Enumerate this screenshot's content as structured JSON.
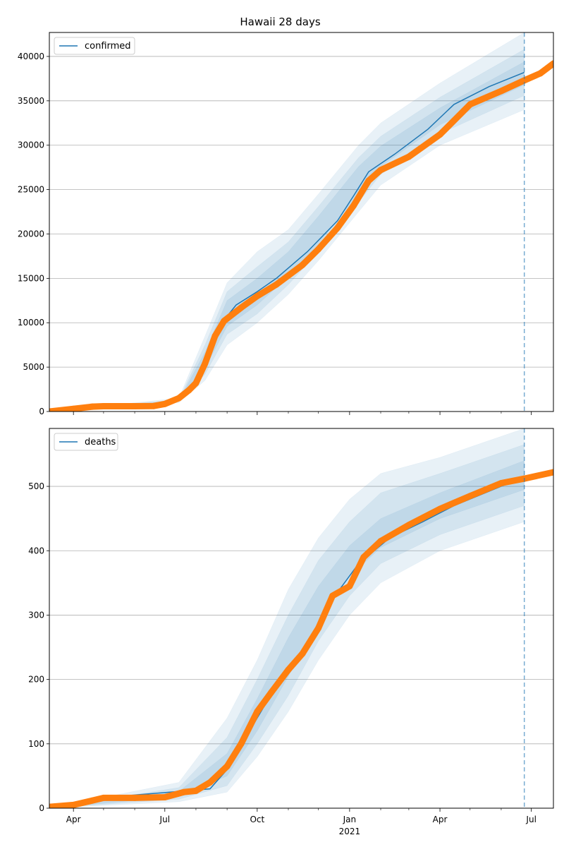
{
  "chart_data": [
    {
      "type": "line",
      "title": "Hawaii 28 days",
      "legend": [
        "confirmed"
      ],
      "legend_position": "top-left",
      "grid": "horizontal",
      "x_range": [
        "2020-03-08",
        "2021-07-23"
      ],
      "ylim": [
        0,
        42700
      ],
      "y_ticks": [
        0,
        5000,
        10000,
        15000,
        20000,
        25000,
        30000,
        35000,
        40000
      ],
      "forecast_marker": "2021-06-24",
      "model_line": {
        "name": "confirmed",
        "x": [
          "2020-03-08",
          "2020-04-20",
          "2020-07-01",
          "2020-07-20",
          "2020-08-01",
          "2020-08-10",
          "2020-08-20",
          "2020-08-29",
          "2020-09-10",
          "2020-10-01",
          "2020-10-20",
          "2020-11-20",
          "2020-12-20",
          "2021-01-05",
          "2021-01-20",
          "2021-02-15",
          "2021-03-20",
          "2021-04-15",
          "2021-05-20",
          "2021-06-24"
        ],
        "y": [
          0,
          500,
          900,
          1600,
          3000,
          5500,
          8800,
          10300,
          12000,
          13500,
          15000,
          18000,
          21500,
          24300,
          27000,
          29000,
          31800,
          34600,
          36600,
          38200
        ]
      },
      "bands": [
        {
          "x": [
            "2020-03-08",
            "2020-07-15",
            "2020-08-10",
            "2020-09-01",
            "2020-10-01",
            "2020-11-01",
            "2020-12-01",
            "2021-01-10",
            "2021-02-01",
            "2021-04-01",
            "2021-06-24"
          ],
          "upper": [
            0,
            1500,
            8500,
            14500,
            18000,
            20500,
            24500,
            30000,
            32500,
            37000,
            42700
          ],
          "lower": [
            0,
            1000,
            3500,
            7500,
            10000,
            13200,
            17000,
            22500,
            25500,
            30000,
            34000
          ]
        },
        {
          "x": [
            "2020-03-08",
            "2020-07-15",
            "2020-08-10",
            "2020-09-01",
            "2020-10-01",
            "2020-11-01",
            "2020-12-01",
            "2021-01-10",
            "2021-02-01",
            "2021-04-01",
            "2021-06-24"
          ],
          "upper": [
            0,
            1350,
            7500,
            13500,
            16300,
            19100,
            23100,
            28600,
            31000,
            35400,
            40800
          ],
          "lower": [
            0,
            1100,
            4200,
            8700,
            11000,
            14300,
            18000,
            23600,
            26700,
            31300,
            35600
          ]
        },
        {
          "x": [
            "2020-03-08",
            "2020-07-15",
            "2020-08-10",
            "2020-09-01",
            "2020-10-01",
            "2020-11-01",
            "2020-12-01",
            "2021-01-10",
            "2021-02-01",
            "2021-04-01",
            "2021-06-24"
          ],
          "upper": [
            0,
            1250,
            6700,
            12500,
            15000,
            18000,
            22000,
            27600,
            29900,
            34200,
            39400
          ],
          "lower": [
            0,
            1180,
            4900,
            9600,
            12000,
            15200,
            18900,
            24500,
            27600,
            32300,
            36800
          ]
        }
      ],
      "observed": {
        "name": "observed",
        "x": [
          "2020-03-08",
          "2020-04-01",
          "2020-04-20",
          "2020-05-01",
          "2020-06-01",
          "2020-06-20",
          "2020-07-01",
          "2020-07-15",
          "2020-07-25",
          "2020-08-01",
          "2020-08-10",
          "2020-08-20",
          "2020-08-29",
          "2020-09-15",
          "2020-10-01",
          "2020-10-20",
          "2020-11-15",
          "2020-12-01",
          "2020-12-20",
          "2021-01-05",
          "2021-01-20",
          "2021-02-01",
          "2021-03-01",
          "2021-04-01",
          "2021-05-01",
          "2021-06-01",
          "2021-06-24",
          "2021-07-10",
          "2021-07-23"
        ],
        "y": [
          0,
          300,
          550,
          600,
          600,
          620,
          850,
          1500,
          2400,
          3200,
          5400,
          8500,
          10200,
          11700,
          13000,
          14300,
          16500,
          18300,
          20700,
          23200,
          26000,
          27200,
          28700,
          31200,
          34600,
          36100,
          37300,
          38100,
          39200
        ]
      }
    },
    {
      "type": "line",
      "title": "",
      "legend": [
        "deaths"
      ],
      "legend_position": "top-left",
      "grid": "horizontal",
      "x_range": [
        "2020-03-08",
        "2021-07-23"
      ],
      "ylim": [
        0,
        590
      ],
      "y_ticks": [
        0,
        100,
        200,
        300,
        400,
        500
      ],
      "x_ticks": [
        "Apr",
        "Jul",
        "Oct",
        "Jan",
        "Apr",
        "Jul"
      ],
      "x_tick_dates": [
        "2020-04-01",
        "2020-07-01",
        "2020-10-01",
        "2021-01-01",
        "2021-04-01",
        "2021-07-01"
      ],
      "x_minor_ticks": [
        "2020-05-01",
        "2020-06-01",
        "2020-08-01",
        "2020-09-01",
        "2020-11-01",
        "2020-12-01",
        "2021-02-01",
        "2021-03-01",
        "2021-05-01",
        "2021-06-01"
      ],
      "x_sublabel": "2021",
      "forecast_marker": "2021-06-24",
      "model_line": {
        "name": "deaths",
        "x": [
          "2020-03-08",
          "2020-04-20",
          "2020-08-15",
          "2020-09-01",
          "2020-10-01",
          "2020-10-20",
          "2020-11-15",
          "2020-12-15",
          "2021-01-10",
          "2021-02-10",
          "2021-03-15",
          "2021-04-15",
          "2021-06-24"
        ],
        "y": [
          0,
          15,
          30,
          60,
          140,
          190,
          240,
          325,
          380,
          420,
          445,
          470,
          515
        ]
      },
      "bands": [
        {
          "x": [
            "2020-03-08",
            "2020-07-15",
            "2020-09-01",
            "2020-10-01",
            "2020-11-01",
            "2020-12-01",
            "2021-01-01",
            "2021-02-01",
            "2021-04-01",
            "2021-06-24"
          ],
          "upper": [
            0,
            40,
            140,
            230,
            340,
            420,
            480,
            520,
            545,
            590
          ],
          "lower": [
            0,
            10,
            25,
            80,
            150,
            230,
            300,
            350,
            400,
            445
          ]
        },
        {
          "x": [
            "2020-03-08",
            "2020-07-15",
            "2020-09-01",
            "2020-10-01",
            "2020-11-01",
            "2020-12-01",
            "2021-01-01",
            "2021-02-01",
            "2021-04-01",
            "2021-06-24"
          ],
          "upper": [
            0,
            32,
            110,
            200,
            300,
            385,
            445,
            490,
            520,
            565
          ],
          "lower": [
            0,
            14,
            35,
            100,
            175,
            260,
            330,
            380,
            425,
            470
          ]
        },
        {
          "x": [
            "2020-03-08",
            "2020-07-15",
            "2020-09-01",
            "2020-10-01",
            "2020-11-01",
            "2020-12-01",
            "2021-01-01",
            "2021-02-01",
            "2021-04-01",
            "2021-06-24"
          ],
          "upper": [
            0,
            26,
            85,
            170,
            265,
            345,
            408,
            450,
            490,
            540
          ],
          "lower": [
            0,
            18,
            50,
            120,
            205,
            290,
            360,
            405,
            450,
            495
          ]
        }
      ],
      "observed": {
        "name": "observed",
        "x": [
          "2020-03-08",
          "2020-04-01",
          "2020-04-20",
          "2020-05-01",
          "2020-06-01",
          "2020-07-01",
          "2020-07-20",
          "2020-08-01",
          "2020-08-15",
          "2020-09-01",
          "2020-09-15",
          "2020-10-01",
          "2020-10-15",
          "2020-11-01",
          "2020-11-15",
          "2020-12-01",
          "2020-12-15",
          "2021-01-01",
          "2021-01-15",
          "2021-02-01",
          "2021-03-01",
          "2021-04-01",
          "2021-05-01",
          "2021-06-01",
          "2021-06-24",
          "2021-07-23"
        ],
        "y": [
          2,
          5,
          12,
          16,
          16,
          17,
          25,
          27,
          40,
          65,
          100,
          150,
          180,
          215,
          240,
          280,
          330,
          345,
          390,
          415,
          440,
          465,
          485,
          505,
          512,
          522
        ]
      }
    }
  ]
}
